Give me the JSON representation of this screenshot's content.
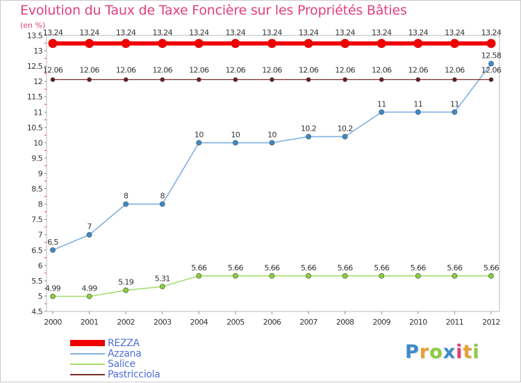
{
  "chart_data": {
    "type": "line",
    "title": "Evolution du Taux de Taxe Foncière sur les Propriétés Bâties",
    "ylabel": "(en %)",
    "xlabel": "",
    "x": [
      2000,
      2001,
      2002,
      2003,
      2004,
      2005,
      2006,
      2007,
      2008,
      2009,
      2010,
      2011,
      2012
    ],
    "ylim": [
      4.5,
      13.5
    ],
    "yticks": [
      4.5,
      5,
      5.5,
      6,
      6.5,
      7,
      7.5,
      8,
      8.5,
      9,
      9.5,
      10,
      10.5,
      11,
      11.5,
      12,
      12.5,
      13,
      13.5
    ],
    "ytick_labels": [
      "4.5",
      "5",
      "5.5",
      "6",
      "6.5",
      "7",
      "7.5",
      "8",
      "8.5",
      "9",
      "9.5",
      "10",
      "10.5",
      "11",
      "11.5",
      "12",
      "12.5",
      "13",
      "13.5"
    ],
    "series": [
      {
        "name": "REZZA",
        "color": "#ee0000",
        "marker_fill": "#ee0000",
        "values": [
          13.24,
          13.24,
          13.24,
          13.24,
          13.24,
          13.24,
          13.24,
          13.24,
          13.24,
          13.24,
          13.24,
          13.24,
          13.24
        ],
        "labels": [
          "13.24",
          "13.24",
          "13.24",
          "13.24",
          "13.24",
          "13.24",
          "13.24",
          "13.24",
          "13.24",
          "13.24",
          "13.24",
          "13.24",
          "13.24"
        ]
      },
      {
        "name": "Azzana",
        "color": "#7fb0e0",
        "marker_fill": "#3d8ac8",
        "values": [
          6.5,
          7,
          8,
          8,
          10,
          10,
          10,
          10.2,
          10.2,
          11,
          11,
          11,
          12.58
        ],
        "labels": [
          "6.5",
          "7",
          "8",
          "8",
          "10",
          "10",
          "10",
          "10.2",
          "10.2",
          "11",
          "11",
          "11",
          "12.58"
        ]
      },
      {
        "name": "Salice",
        "color": "#a6dd6f",
        "marker_fill": "#8acd3e",
        "values": [
          4.99,
          4.99,
          5.19,
          5.31,
          5.66,
          5.66,
          5.66,
          5.66,
          5.66,
          5.66,
          5.66,
          5.66,
          5.66
        ],
        "labels": [
          "4.99",
          "4.99",
          "5.19",
          "5.31",
          "5.66",
          "5.66",
          "5.66",
          "5.66",
          "5.66",
          "5.66",
          "5.66",
          "5.66",
          "5.66"
        ]
      },
      {
        "name": "Pastricciola",
        "color": "#7a2a2a",
        "marker_fill": "#6a1c1c",
        "values": [
          12.06,
          12.06,
          12.06,
          12.06,
          12.06,
          12.06,
          12.06,
          12.06,
          12.06,
          12.06,
          12.06,
          12.06,
          12.06
        ],
        "labels": [
          "12.06",
          "12.06",
          "12.06",
          "12.06",
          "12.06",
          "12.06",
          "12.06",
          "12.06",
          "12.06",
          "12.06",
          "12.06",
          "12.06",
          "12.06"
        ]
      }
    ],
    "grid": false,
    "legend_position": "bottom-left"
  },
  "legend": {
    "items": [
      {
        "label": "REZZA",
        "color": "#ee0000"
      },
      {
        "label": "Azzana",
        "color": "#7fb0e0"
      },
      {
        "label": "Salice",
        "color": "#a6dd6f"
      },
      {
        "label": "Pastricciola",
        "color": "#7a2a2a"
      }
    ]
  },
  "logo": {
    "letters": [
      "P",
      "r",
      "o",
      "x",
      "i",
      "t",
      "i"
    ],
    "colors": [
      "#3d8ac8",
      "#e8a030",
      "#8acd3e",
      "#3d8ac8",
      "#e0407c",
      "#e8a030",
      "#8acd3e"
    ]
  }
}
